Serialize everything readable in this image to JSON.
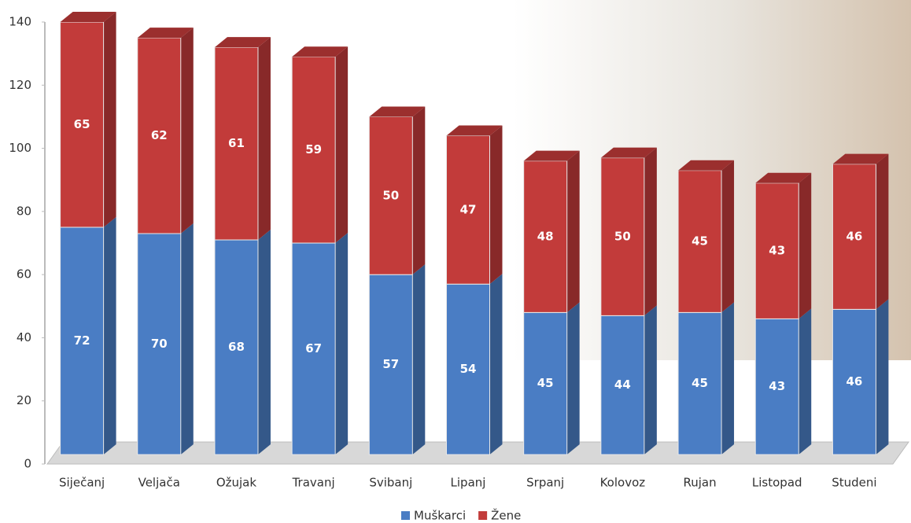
{
  "chart_data": {
    "type": "bar",
    "stacked": true,
    "categories": [
      "Siječanj",
      "Veljača",
      "Ožujak",
      "Travanj",
      "Svibanj",
      "Lipanj",
      "Srpanj",
      "Kolovoz",
      "Rujan",
      "Listopad",
      "Studeni"
    ],
    "series": [
      {
        "name": "Muškarci",
        "color": "#4a7dc4",
        "values": [
          72,
          70,
          68,
          67,
          57,
          54,
          45,
          44,
          45,
          43,
          46
        ]
      },
      {
        "name": "Žene",
        "color": "#c23b3a",
        "values": [
          65,
          62,
          61,
          59,
          50,
          47,
          48,
          50,
          45,
          43,
          46
        ]
      }
    ],
    "ylim": [
      0,
      140
    ],
    "yticks": [
      0,
      20,
      40,
      60,
      80,
      100,
      120,
      140
    ]
  }
}
